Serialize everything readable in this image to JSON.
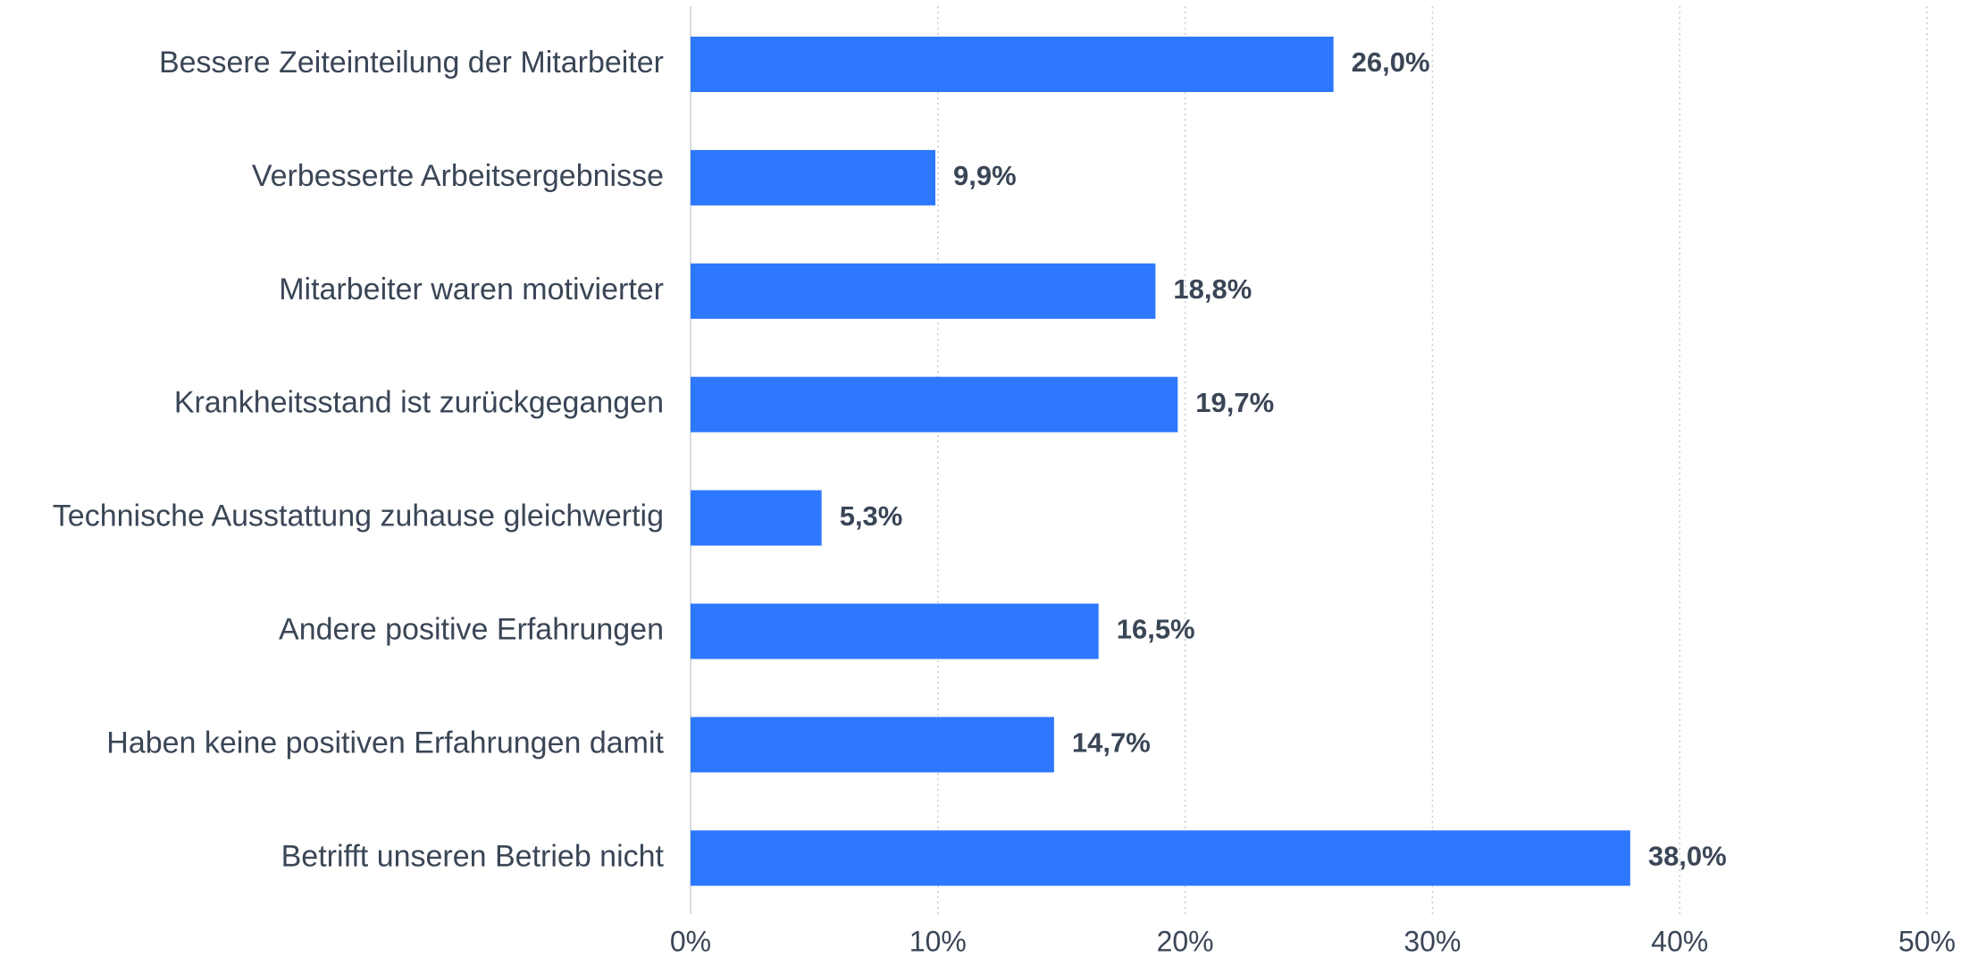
{
  "chart_data": {
    "type": "hbar",
    "categories": [
      "Bessere Zeiteinteilung der Mitarbeiter",
      "Verbesserte Arbeitsergebnisse",
      "Mitarbeiter waren motivierter",
      "Krankheitsstand ist zurückgegangen",
      "Technische Ausstattung zuhause gleichwertig",
      "Andere positive Erfahrungen",
      "Haben keine positiven Erfahrungen damit",
      "Betrifft unseren Betrieb nicht"
    ],
    "values": [
      26.0,
      9.9,
      18.8,
      19.7,
      5.3,
      16.5,
      14.7,
      38.0
    ],
    "value_labels": [
      "26,0%",
      "9,9%",
      "18,8%",
      "19,7%",
      "5,3%",
      "16,5%",
      "14,7%",
      "38,0%"
    ],
    "color": "#2d78ff",
    "xlim": [
      0,
      50
    ],
    "xticks": [
      {
        "value": 0,
        "label": "0%"
      },
      {
        "value": 10,
        "label": "10%"
      },
      {
        "value": 20,
        "label": "20%"
      },
      {
        "value": 30,
        "label": "30%"
      },
      {
        "value": 40,
        "label": "40%"
      },
      {
        "value": 50,
        "label": "50%"
      }
    ],
    "grid": true
  }
}
